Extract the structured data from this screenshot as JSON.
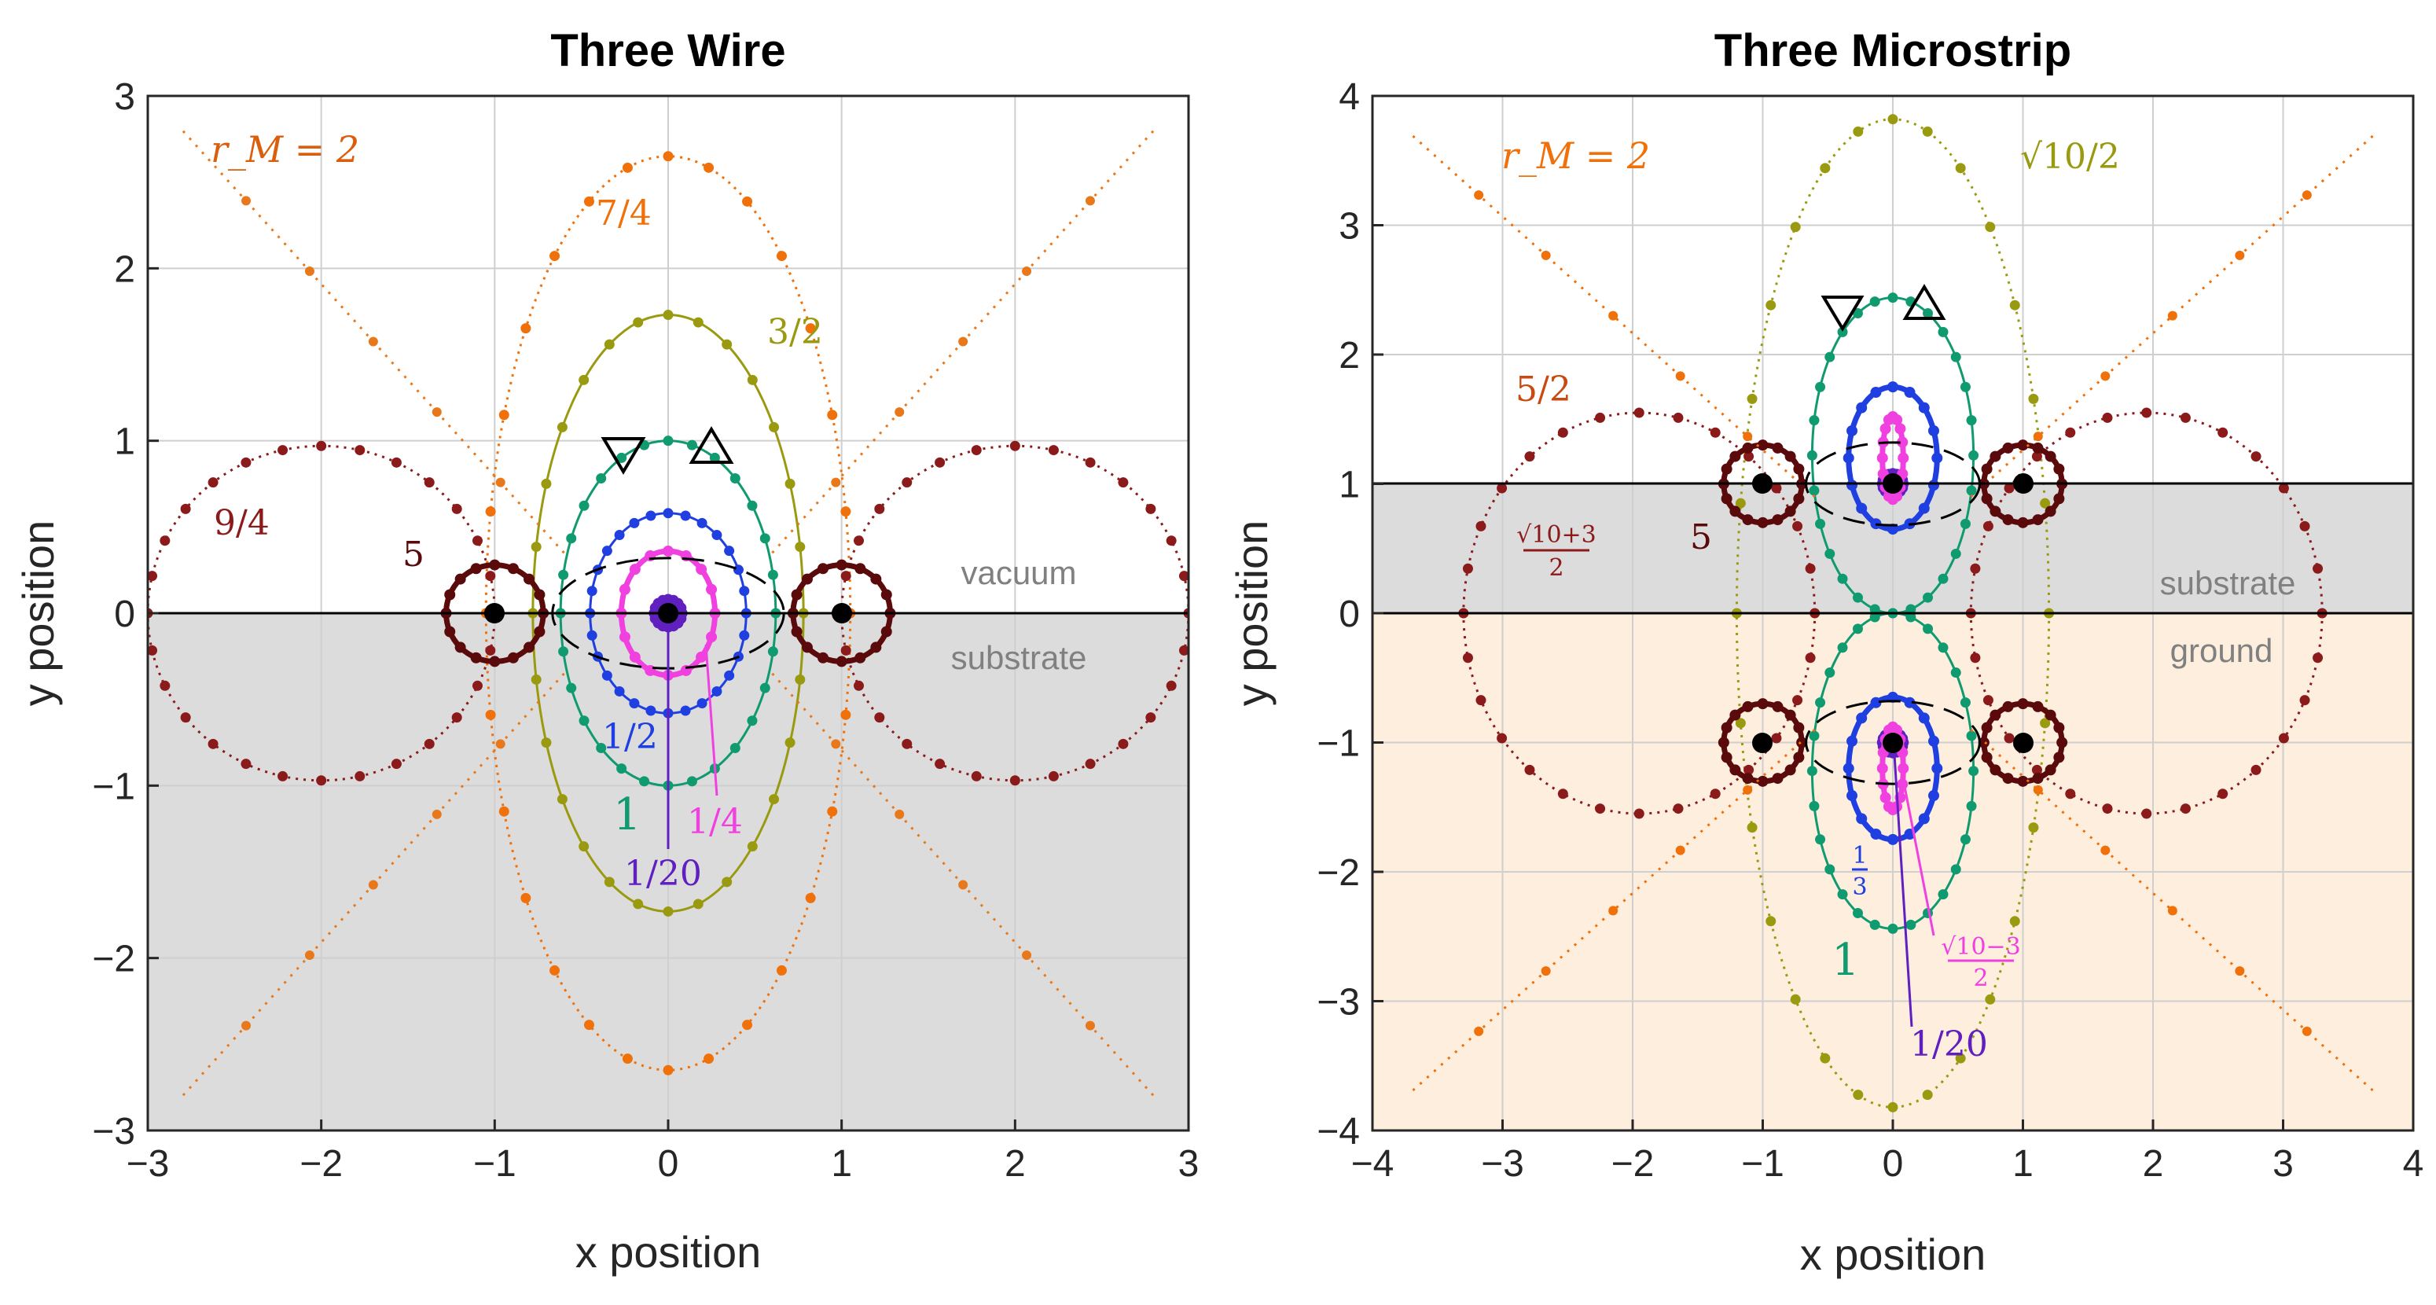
{
  "chart_data": [
    {
      "type": "line",
      "title": "Three Wire",
      "xlabel": "x position",
      "ylabel": "y position",
      "xlim": [
        -3,
        3
      ],
      "ylim": [
        -3,
        3
      ],
      "xticks": [
        "−3",
        "−2",
        "−1",
        "0",
        "1",
        "2",
        "3"
      ],
      "yticks": [
        "3",
        "2",
        "1",
        "0",
        "−1",
        "−2",
        "−3"
      ],
      "grid": true,
      "regions": [
        {
          "label": "vacuum",
          "y_range": [
            0,
            3
          ],
          "color": "#ffffff"
        },
        {
          "label": "substrate",
          "y_range": [
            -3,
            0
          ],
          "color": "#dcdcdc"
        }
      ],
      "conductors": [
        {
          "x": -1,
          "y": 0
        },
        {
          "x": 0,
          "y": 0
        },
        {
          "x": 1,
          "y": 0
        }
      ],
      "annotations": [
        {
          "text": "r_M = 2",
          "color": "#d95f0e"
        },
        {
          "text": "7/4",
          "color": "#f0700a"
        },
        {
          "text": "3/2",
          "color": "#9a9a10"
        },
        {
          "text": "9/4",
          "color": "#8b1a1a"
        },
        {
          "text": "5",
          "color": "#5a0a0a"
        },
        {
          "text": "1/2",
          "color": "#1f3fe0"
        },
        {
          "text": "1",
          "color": "#109a70"
        },
        {
          "text": "1/4",
          "color": "#f040e0"
        },
        {
          "text": "1/20",
          "color": "#6020c0"
        }
      ],
      "series": [
        {
          "name": "1/20",
          "shape": "ring",
          "cx": 0,
          "cy": 0,
          "a": 0.08,
          "b": 0.08,
          "color": "#6020c0"
        },
        {
          "name": "1/4",
          "shape": "ring",
          "cx": 0,
          "cy": 0,
          "a": 0.27,
          "b": 0.36,
          "color": "#f040e0"
        },
        {
          "name": "1/2",
          "shape": "ellipse",
          "cx": 0,
          "cy": 0,
          "a": 0.45,
          "b": 0.58,
          "color": "#1f3fe0"
        },
        {
          "name": "1",
          "shape": "ellipse",
          "cx": 0,
          "cy": 0,
          "a": 0.62,
          "b": 1.0,
          "color": "#109a70"
        },
        {
          "name": "3/2",
          "shape": "ellipse",
          "cx": 0,
          "cy": 0,
          "a": 0.78,
          "b": 1.73,
          "color": "#9a9a10"
        },
        {
          "name": "7/4",
          "shape": "ellipse",
          "cx": 0,
          "cy": 0,
          "a": 1.05,
          "b": 2.65,
          "color": "#f0700a"
        },
        {
          "name": "9/4",
          "shape": "ellipse",
          "cx": -2.0,
          "cy": 0,
          "a": 1.0,
          "b": 0.97,
          "color": "#8b1a1a"
        },
        {
          "name": "9/4",
          "shape": "ellipse",
          "cx": 2.0,
          "cy": 0,
          "a": 1.0,
          "b": 0.97,
          "color": "#8b1a1a"
        },
        {
          "name": "5",
          "shape": "ring",
          "cx": -1,
          "cy": 0,
          "a": 0.28,
          "b": 0.28,
          "color": "#5a0a0a"
        },
        {
          "name": "5",
          "shape": "ring",
          "cx": 1,
          "cy": 0,
          "a": 0.28,
          "b": 0.28,
          "color": "#5a0a0a"
        },
        {
          "name": "2",
          "shape": "diagonals",
          "extent": 2.8,
          "color": "#e8781a"
        }
      ]
    },
    {
      "type": "line",
      "title": "Three Microstrip",
      "xlabel": "x position",
      "ylabel": "y position",
      "xlim": [
        -4,
        4
      ],
      "ylim": [
        -4,
        4
      ],
      "xticks": [
        "−4",
        "−3",
        "−2",
        "−1",
        "0",
        "1",
        "2",
        "3",
        "4"
      ],
      "yticks": [
        "4",
        "3",
        "2",
        "1",
        "0",
        "−1",
        "−2",
        "−3",
        "−4"
      ],
      "grid": true,
      "regions": [
        {
          "label": "substrate",
          "y_range": [
            0,
            1
          ],
          "color": "#dcdcdc"
        },
        {
          "label": "ground",
          "y_range": [
            -4,
            0
          ],
          "color": "#fdeedd"
        }
      ],
      "conductors": [
        {
          "x": -1,
          "y": 1
        },
        {
          "x": 0,
          "y": 1
        },
        {
          "x": 1,
          "y": 1
        },
        {
          "x": -1,
          "y": -1
        },
        {
          "x": 0,
          "y": -1
        },
        {
          "x": 1,
          "y": -1
        }
      ],
      "annotations": [
        {
          "text": "r_M = 2",
          "color": "#f0700a"
        },
        {
          "text": "√10/2",
          "color": "#9a9a10"
        },
        {
          "text": "5/2",
          "color": "#c84a10"
        },
        {
          "text": "√10+3",
          "color": "#8b1a1a"
        },
        {
          "text": "2",
          "color": "#8b1a1a"
        },
        {
          "text": "5",
          "color": "#5a0a0a"
        },
        {
          "text": "1",
          "color": "#1f3fe0"
        },
        {
          "text": "3",
          "color": "#1f3fe0"
        },
        {
          "text": "1",
          "color": "#109a70"
        },
        {
          "text": "√10−3",
          "color": "#f040e0"
        },
        {
          "text": "2",
          "color": "#f040e0"
        },
        {
          "text": "1/20",
          "color": "#6020c0"
        }
      ],
      "series": [
        {
          "name": "1/20",
          "shape": "ring",
          "cx": 0,
          "cy": 1,
          "a": 0.08,
          "b": 0.08,
          "color": "#6020c0"
        },
        {
          "name": "1/20",
          "shape": "ring",
          "cx": 0,
          "cy": -1,
          "a": 0.08,
          "b": 0.08,
          "color": "#6020c0"
        },
        {
          "name": "(√10−3)/2",
          "shape": "ring",
          "cx": 0,
          "cy": 1.2,
          "a": 0.08,
          "b": 0.32,
          "color": "#f040e0"
        },
        {
          "name": "(√10−3)/2",
          "shape": "ring",
          "cx": 0,
          "cy": -1.2,
          "a": 0.08,
          "b": 0.32,
          "color": "#f040e0"
        },
        {
          "name": "1/3",
          "shape": "ring",
          "cx": 0,
          "cy": 1.2,
          "a": 0.34,
          "b": 0.55,
          "color": "#1f3fe0"
        },
        {
          "name": "1/3",
          "shape": "ring",
          "cx": 0,
          "cy": -1.2,
          "a": 0.34,
          "b": 0.55,
          "color": "#1f3fe0"
        },
        {
          "name": "1",
          "shape": "ellipse",
          "cx": 0,
          "cy": 1.22,
          "a": 0.62,
          "b": 1.22,
          "color": "#109a70"
        },
        {
          "name": "1",
          "shape": "ellipse",
          "cx": 0,
          "cy": -1.22,
          "a": 0.62,
          "b": 1.22,
          "color": "#109a70"
        },
        {
          "name": "√10/2",
          "shape": "ellipse",
          "cx": 0,
          "cy": 0,
          "a": 1.2,
          "b": 3.82,
          "color": "#9a9a10"
        },
        {
          "name": "(√10+3)/2",
          "shape": "ellipse",
          "cx": -1.95,
          "cy": 0,
          "a": 1.35,
          "b": 1.55,
          "color": "#8b1a1a"
        },
        {
          "name": "(√10+3)/2",
          "shape": "ellipse",
          "cx": 1.95,
          "cy": 0,
          "a": 1.35,
          "b": 1.55,
          "color": "#8b1a1a"
        },
        {
          "name": "5",
          "shape": "ring",
          "cx": -1,
          "cy": 1,
          "a": 0.3,
          "b": 0.3,
          "color": "#5a0a0a"
        },
        {
          "name": "5",
          "shape": "ring",
          "cx": 1,
          "cy": 1,
          "a": 0.3,
          "b": 0.3,
          "color": "#5a0a0a"
        },
        {
          "name": "5",
          "shape": "ring",
          "cx": -1,
          "cy": -1,
          "a": 0.3,
          "b": 0.3,
          "color": "#5a0a0a"
        },
        {
          "name": "5",
          "shape": "ring",
          "cx": 1,
          "cy": -1,
          "a": 0.3,
          "b": 0.3,
          "color": "#5a0a0a"
        },
        {
          "name": "2",
          "shape": "diagonals",
          "extent": 3.7,
          "color": "#f0700a"
        }
      ]
    }
  ]
}
